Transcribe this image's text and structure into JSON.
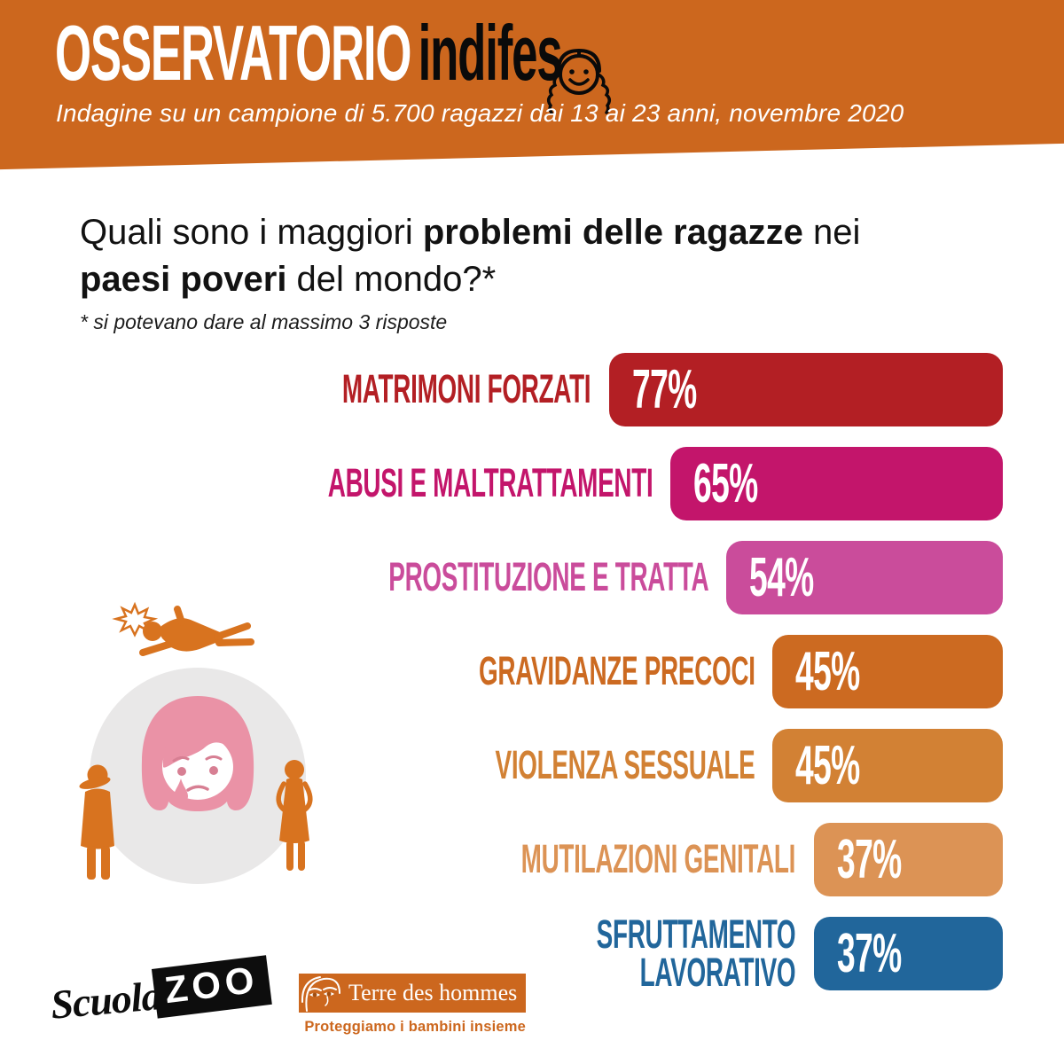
{
  "header": {
    "brand_white": "OSSERVATORIO",
    "brand_black": "indifes",
    "brand_icon": "girl-face-braids-icon",
    "subtitle": "Indagine su un campione di 5.700 ragazzi dai 13 ai 23 anni, novembre 2020",
    "bg_color": "#CC671E"
  },
  "question": {
    "part1": "Quali sono i maggiori ",
    "bold1": "problemi delle ragazze",
    "part2": " nei ",
    "bold2": "paesi poveri",
    "part3": " del mondo?*",
    "footnote": "* si potevano dare al massimo 3 risposte"
  },
  "chart_data": {
    "type": "bar",
    "orientation": "horizontal",
    "title": "Quali sono i maggiori problemi delle ragazze nei paesi poveri del mondo?",
    "unit": "%",
    "xlim": [
      0,
      100
    ],
    "grid": false,
    "legend": false,
    "bars_right_aligned": true,
    "categories": [
      "MATRIMONI FORZATI",
      "ABUSI E MALTRATTAMENTI",
      "PROSTITUZIONE E TRATTA",
      "GRAVIDANZE PRECOCI",
      "VIOLENZA SESSUALE",
      "MUTILAZIONI GENITALI",
      "SFRUTTAMENTO\nLAVORATIVO"
    ],
    "values": [
      77,
      65,
      54,
      45,
      45,
      37,
      37
    ],
    "value_labels": [
      "77%",
      "65%",
      "54%",
      "45%",
      "45%",
      "37%",
      "37%"
    ],
    "colors": [
      "#B31F24",
      "#C3156B",
      "#CA4C9B",
      "#CC6A21",
      "#D28134",
      "#DC9355",
      "#21669B"
    ]
  },
  "illustration": {
    "name": "crying-girl-surrounded-figures",
    "circle_color": "#E9E8E8",
    "figure_color": "#D8731F",
    "hair_color": "#EA92A6",
    "feature_color": "#D77F93"
  },
  "footer": {
    "scuolazoo_script": "Scuola",
    "scuolazoo_box": "ZOO",
    "tdh_name": "Terre des hommes",
    "tdh_tagline": "Proteggiamo i bambini insieme"
  }
}
